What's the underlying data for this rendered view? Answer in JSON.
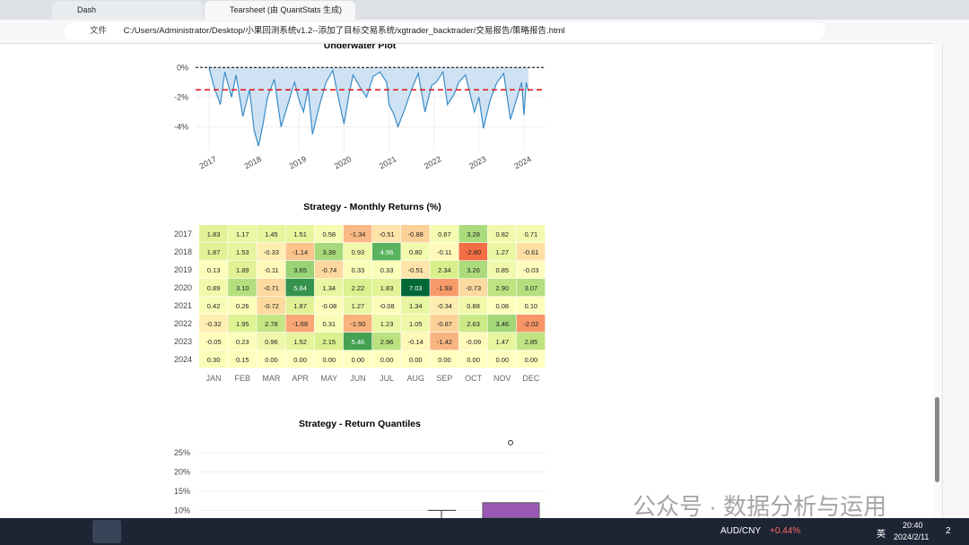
{
  "browser": {
    "tabs": [
      "Dash",
      "Tearsheet (由 QuantStats 生成)"
    ],
    "address_prefix": "文件",
    "address": "C:/Users/Administrator/Desktop/小果回测系统v1.2--添加了目标交易系统/xgtrader_backtrader/交易报告/策略报告.html"
  },
  "chart_data": [
    {
      "type": "area",
      "title": "Underwater Plot",
      "color": "#3a8cc7",
      "fill": "#cfe2f3",
      "x": [
        2017.0,
        2017.1,
        2017.25,
        2017.35,
        2017.5,
        2017.6,
        2017.75,
        2017.9,
        2018.0,
        2018.1,
        2018.2,
        2018.3,
        2018.45,
        2018.6,
        2018.75,
        2018.9,
        2019.0,
        2019.1,
        2019.2,
        2019.3,
        2019.45,
        2019.6,
        2019.75,
        2019.9,
        2020.0,
        2020.1,
        2020.2,
        2020.35,
        2020.5,
        2020.65,
        2020.8,
        2020.95,
        2021.0,
        2021.1,
        2021.2,
        2021.35,
        2021.5,
        2021.65,
        2021.8,
        2021.95,
        2022.05,
        2022.2,
        2022.3,
        2022.45,
        2022.55,
        2022.7,
        2022.9,
        2023.0,
        2023.1,
        2023.25,
        2023.4,
        2023.55,
        2023.7,
        2023.85,
        2023.95,
        2024.0,
        2024.05,
        2024.1
      ],
      "values": [
        0,
        -1.2,
        -2.5,
        -0.3,
        -2.0,
        -0.5,
        -3.3,
        -1.5,
        -4.2,
        -5.3,
        -3.8,
        -2.0,
        -0.8,
        -4.0,
        -2.5,
        -1.0,
        -2.2,
        -3.0,
        -1.4,
        -4.5,
        -2.6,
        -1.0,
        -0.2,
        -2.4,
        -3.8,
        -2.0,
        -0.5,
        -1.3,
        -2.0,
        -0.6,
        -0.3,
        -1.0,
        -2.5,
        -3.1,
        -4.0,
        -2.8,
        -1.5,
        -0.4,
        -3.0,
        -1.2,
        -1.0,
        -0.3,
        -2.5,
        -1.8,
        -1.0,
        -0.5,
        -3.0,
        -2.0,
        -4.1,
        -2.2,
        -1.0,
        -0.4,
        -3.5,
        -2.0,
        -1.0,
        -3.2,
        -1.0,
        -1.6
      ],
      "average": -1.5,
      "xlim": [
        2016.7,
        2024.48
      ],
      "ylim": [
        -5.6,
        0.2
      ],
      "xticks": [
        2017,
        2018,
        2019,
        2020,
        2021,
        2022,
        2023,
        2024
      ],
      "yticks": [
        {
          "value": 0,
          "label": "0%"
        },
        {
          "value": -2,
          "label": "-2%"
        },
        {
          "value": -4,
          "label": "-4%"
        }
      ]
    },
    {
      "type": "heatmap",
      "title": "Strategy - Monthly Returns (%)",
      "rows": [
        "2017",
        "2018",
        "2019",
        "2020",
        "2021",
        "2022",
        "2023",
        "2024"
      ],
      "columns": [
        "JAN",
        "FEB",
        "MAR",
        "APR",
        "MAY",
        "JUN",
        "JUL",
        "AUG",
        "SEP",
        "OCT",
        "NOV",
        "DEC"
      ],
      "values": [
        [
          1.83,
          1.17,
          1.45,
          1.51,
          0.58,
          -1.34,
          -0.51,
          -0.88,
          0.67,
          3.28,
          0.82,
          0.71
        ],
        [
          1.87,
          1.53,
          -0.33,
          -1.14,
          3.39,
          0.93,
          4.96,
          0.8,
          -0.11,
          -2.8,
          1.27,
          -0.61
        ],
        [
          0.13,
          1.89,
          -0.11,
          3.65,
          -0.74,
          0.33,
          0.33,
          -0.51,
          2.34,
          3.26,
          0.85,
          -0.03
        ],
        [
          0.89,
          3.1,
          -0.71,
          5.84,
          1.34,
          2.22,
          1.83,
          7.03,
          -1.93,
          -0.73,
          2.9,
          3.07
        ],
        [
          0.42,
          0.26,
          -0.72,
          1.87,
          -0.08,
          1.27,
          -0.08,
          1.34,
          -0.34,
          0.88,
          0.08,
          0.1
        ],
        [
          -0.32,
          1.95,
          2.78,
          -1.68,
          0.31,
          -1.5,
          1.23,
          1.05,
          -0.87,
          2.63,
          3.46,
          -2.02
        ],
        [
          -0.05,
          0.23,
          0.96,
          1.52,
          2.15,
          5.46,
          2.96,
          -0.14,
          -1.42,
          -0.09,
          1.47,
          2.85
        ],
        [
          0.3,
          0.15,
          0,
          0,
          0,
          0,
          0,
          0,
          0,
          0,
          0,
          0
        ]
      ],
      "value_labels": [
        [
          "1.83",
          "1.17",
          "1.45",
          "1.51",
          "0.58",
          "-1.34",
          "-0.51",
          "-0.88",
          "0.67",
          "3.28",
          "0.82",
          "0.71"
        ],
        [
          "1.87",
          "1.53",
          "-0.33",
          "-1.14",
          "3.39",
          "0.93",
          "4.96",
          "0.80",
          "-0.11",
          "-2.80",
          "1.27",
          "-0.61"
        ],
        [
          "0.13",
          "1.89",
          "-0.11",
          "3.65",
          "-0.74",
          "0.33",
          "0.33",
          "-0.51",
          "2.34",
          "3.26",
          "0.85",
          "-0.03"
        ],
        [
          "0.89",
          "3.10",
          "-0.71",
          "5.84",
          "1.34",
          "2.22",
          "1.83",
          "7.03",
          "-1.93",
          "-0.73",
          "2.90",
          "3.07"
        ],
        [
          "0.42",
          "0.26",
          "-0.72",
          "1.87",
          "-0.08",
          "1.27",
          "-0.08",
          "1.34",
          "-0.34",
          "0.88",
          "0.08",
          "0.10"
        ],
        [
          "-0.32",
          "1.95",
          "2.78",
          "-1.68",
          "0.31",
          "-1.50",
          "1.23",
          "1.05",
          "-0.87",
          "2.63",
          "3.46",
          "-2.02"
        ],
        [
          "-0.05",
          "0.23",
          "0.96",
          "1.52",
          "2.15",
          "5.46",
          "2.96",
          "-0.14",
          "-1.42",
          "-0.09",
          "1.47",
          "2.85"
        ],
        [
          "0.30",
          "0.15",
          "0.00",
          "0.00",
          "0.00",
          "0.00",
          "0.00",
          "0.00",
          "0.00",
          "0.00",
          "0.00",
          "0.00"
        ]
      ]
    },
    {
      "type": "box",
      "title": "Strategy - Return Quantiles",
      "ylim": [
        8,
        28.5
      ],
      "yticks": [
        {
          "value": 25,
          "label": "25%"
        },
        {
          "value": 20,
          "label": "20%"
        },
        {
          "value": 15,
          "label": "15%"
        },
        {
          "value": 10,
          "label": "10%"
        }
      ],
      "boxes": [
        {
          "whisker_high": 10
        },
        {
          "q3": 12,
          "outlier": 27.6,
          "color": "#9b59b6"
        }
      ]
    }
  ],
  "taskbar": {
    "ticker": "AUD/CNY",
    "change": "+0.44%",
    "ime": "英",
    "time": "20:40",
    "date": "2024/2/11",
    "notifications": "2"
  },
  "watermark": "公众号 · 数据分析与运用"
}
